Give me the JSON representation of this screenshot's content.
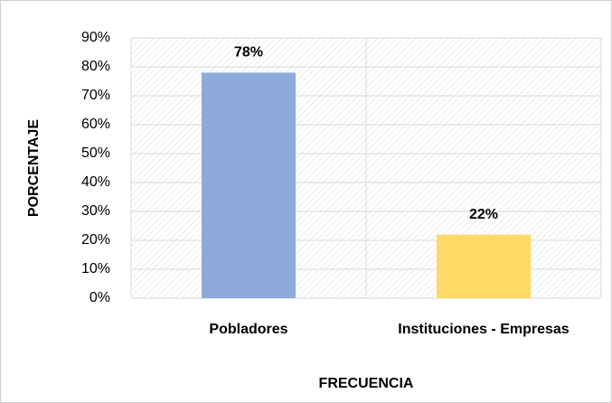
{
  "chart_data": {
    "type": "bar",
    "categories": [
      "Pobladores",
      "Instituciones - Empresas"
    ],
    "values": [
      78,
      22
    ],
    "value_labels": [
      "78%",
      "22%"
    ],
    "colors": [
      "#8eaadb",
      "#ffd966"
    ],
    "xlabel": "FRECUENCIA",
    "ylabel": "PORCENTAJE",
    "ylim": [
      0,
      90
    ],
    "yticks": [
      {
        "value": 0,
        "label": "0%"
      },
      {
        "value": 10,
        "label": "10%"
      },
      {
        "value": 20,
        "label": "20%"
      },
      {
        "value": 30,
        "label": "30%"
      },
      {
        "value": 40,
        "label": "40%"
      },
      {
        "value": 50,
        "label": "50%"
      },
      {
        "value": 60,
        "label": "60%"
      },
      {
        "value": 70,
        "label": "70%"
      },
      {
        "value": 80,
        "label": "80%"
      },
      {
        "value": 90,
        "label": "90%"
      }
    ],
    "grid": true
  }
}
